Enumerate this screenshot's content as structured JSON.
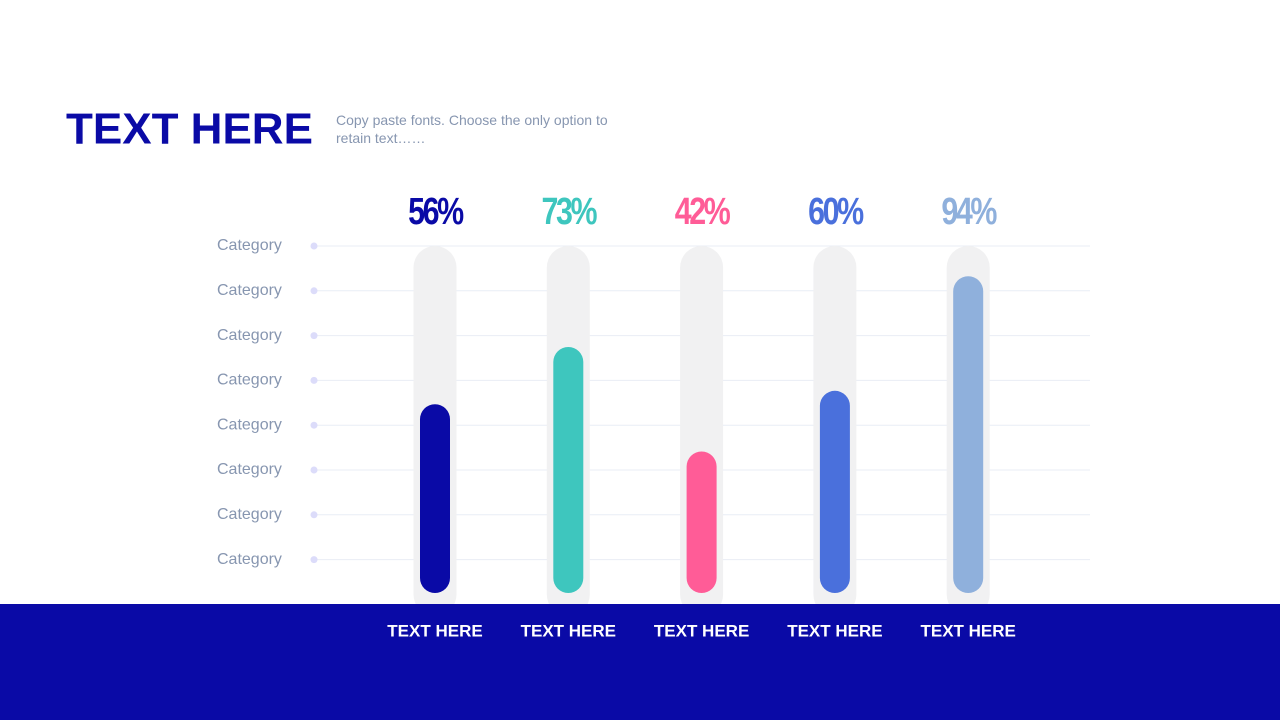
{
  "chart_data": {
    "type": "bar",
    "title": "TEXT HERE",
    "subtitle": "Copy paste fonts. Choose the only option to retain text……",
    "categories": [
      "TEXT HERE",
      "TEXT HERE",
      "TEXT HERE",
      "TEXT HERE",
      "TEXT HERE"
    ],
    "values": [
      56,
      73,
      42,
      60,
      94
    ],
    "value_labels": [
      "56%",
      "73%",
      "42%",
      "60%",
      "94%"
    ],
    "colors": [
      "#0a0aa6",
      "#3ec6be",
      "#ff5c97",
      "#4a70dc",
      "#8fb0dc"
    ],
    "ylim": [
      0,
      100
    ],
    "row_labels": [
      "Category",
      "Category",
      "Category",
      "Category",
      "Category",
      "Category",
      "Category",
      "Category"
    ]
  }
}
